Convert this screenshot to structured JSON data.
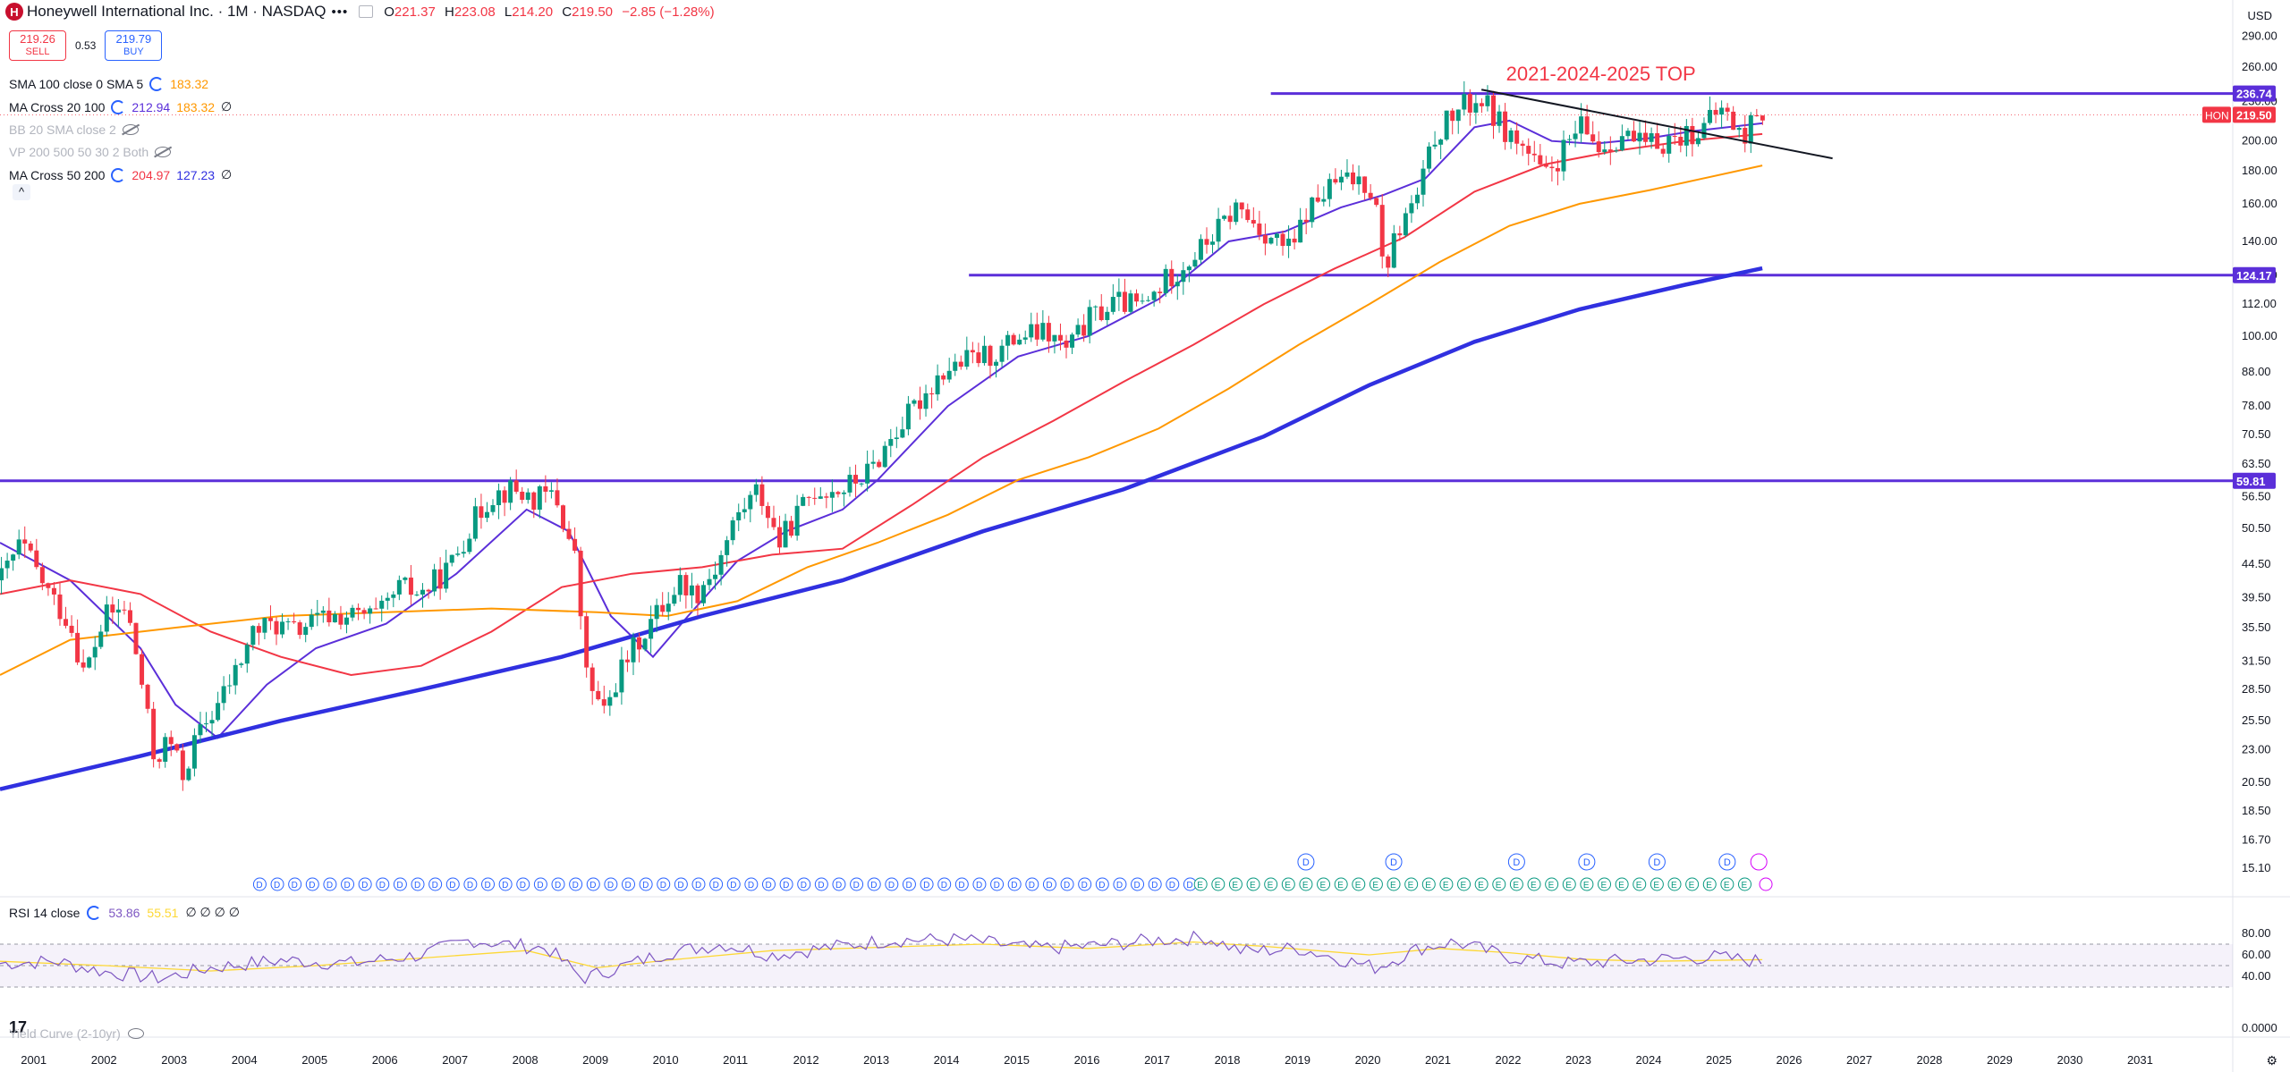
{
  "header": {
    "logo_letter": "H",
    "title": "Honeywell International Inc. · 1M · NASDAQ",
    "dots": "•••",
    "open_label": "O",
    "open": "221.37",
    "high_label": "H",
    "high": "223.08",
    "low_label": "L",
    "low": "214.20",
    "close_label": "C",
    "close": "219.50",
    "change": "−2.85 (−1.28%)",
    "currency": "USD"
  },
  "trade": {
    "sell_price": "219.26",
    "sell_label": "SELL",
    "spread": "0.53",
    "buy_price": "219.79",
    "buy_label": "BUY"
  },
  "indicators": [
    {
      "name": "SMA 100 close 0 SMA 5",
      "v1": "183.32",
      "v1color": "#ff9800",
      "v2": "",
      "v2color": "",
      "tail": "",
      "dim": false
    },
    {
      "name": "MA Cross 20 100",
      "v1": "212.94",
      "v1color": "#5b2fd9",
      "v2": "183.32",
      "v2color": "#ff9800",
      "tail": "∅",
      "dim": false
    },
    {
      "name": "BB 20 SMA close 2",
      "v1": "",
      "v1color": "",
      "v2": "",
      "v2color": "",
      "tail": "",
      "dim": true
    },
    {
      "name": "VP 200 500 50 30 2 Both",
      "v1": "",
      "v1color": "",
      "v2": "",
      "v2color": "",
      "tail": "",
      "dim": true
    },
    {
      "name": "MA Cross 50 200",
      "v1": "204.97",
      "v1color": "#f23645",
      "v2": "127.23",
      "v2color": "#3030e0",
      "tail": "∅",
      "dim": false
    }
  ],
  "rsi": {
    "name": "RSI 14 close",
    "v1": "53.86",
    "v2": "55.51",
    "tail": "∅ ∅ ∅ ∅",
    "axis": [
      "80.00",
      "60.00",
      "40.00",
      "0.0000"
    ]
  },
  "yield_curve": {
    "name": "Yield Curve (2-10yr)"
  },
  "chart_data": {
    "type": "candlestick",
    "symbol": "HON",
    "interval": "1M",
    "y_scale": "log",
    "ylim": [
      14.0,
      300.0
    ],
    "y_ticks": [
      "290.00",
      "260.00",
      "236.74",
      "219.50",
      "200.00",
      "180.00",
      "160.00",
      "140.00",
      "124.17",
      "112.00",
      "100.00",
      "88.00",
      "78.00",
      "70.50",
      "63.50",
      "59.81",
      "56.50",
      "50.50",
      "44.50",
      "39.50",
      "35.50",
      "31.50",
      "28.50",
      "25.50",
      "23.00",
      "20.50",
      "18.50",
      "16.70",
      "15.10"
    ],
    "grid_labels": [
      290,
      260,
      230,
      200,
      180,
      160,
      140,
      124,
      112,
      100,
      88,
      78,
      70.5,
      63.5,
      56.5,
      50.5,
      44.5,
      39.5,
      35.5,
      31.5,
      28.5,
      25.5,
      23,
      20.5,
      18.5,
      16.7,
      15.1
    ],
    "x_ticks": [
      "2001",
      "2002",
      "2003",
      "2004",
      "2005",
      "2006",
      "2007",
      "2008",
      "2009",
      "2010",
      "2011",
      "2012",
      "2013",
      "2014",
      "2015",
      "2016",
      "2017",
      "2018",
      "2019",
      "2020",
      "2021",
      "2022",
      "2023",
      "2024",
      "2025",
      "2026",
      "2027",
      "2028",
      "2029",
      "2030",
      "2031"
    ],
    "xlim": [
      2000.5,
      2032.3
    ],
    "annotation": "2021-2024-2025 TOP",
    "levels": [
      {
        "value": 236.74,
        "label": "236.74",
        "from": 2018.6
      },
      {
        "value": 124.17,
        "label": "124.17",
        "from": 2014.3
      },
      {
        "value": 59.81,
        "label": "59.81",
        "from": 2000.5
      }
    ],
    "last_price": {
      "symbol": "HON",
      "value": "219.50"
    },
    "trendline": {
      "x": [
        2021.6,
        2026.6
      ],
      "y": [
        240,
        188
      ]
    },
    "price_path": [
      [
        2000.5,
        42
      ],
      [
        2000.8,
        48
      ],
      [
        2001.2,
        40
      ],
      [
        2001.5,
        36
      ],
      [
        2001.7,
        30
      ],
      [
        2002.0,
        37
      ],
      [
        2002.3,
        38
      ],
      [
        2002.5,
        30
      ],
      [
        2002.7,
        22
      ],
      [
        2002.9,
        24
      ],
      [
        2003.1,
        21
      ],
      [
        2003.3,
        24
      ],
      [
        2003.6,
        27
      ],
      [
        2003.9,
        31
      ],
      [
        2004.1,
        35
      ],
      [
        2004.4,
        36
      ],
      [
        2004.7,
        35
      ],
      [
        2004.9,
        36
      ],
      [
        2005.2,
        37
      ],
      [
        2005.6,
        37
      ],
      [
        2005.9,
        37
      ],
      [
        2006.2,
        41
      ],
      [
        2006.5,
        40
      ],
      [
        2006.9,
        44
      ],
      [
        2007.2,
        51
      ],
      [
        2007.5,
        57
      ],
      [
        2007.8,
        58
      ],
      [
        2008.1,
        56
      ],
      [
        2008.4,
        57
      ],
      [
        2008.7,
        45
      ],
      [
        2008.85,
        30
      ],
      [
        2009.1,
        26
      ],
      [
        2009.3,
        30
      ],
      [
        2009.6,
        34
      ],
      [
        2009.9,
        38
      ],
      [
        2010.2,
        42
      ],
      [
        2010.4,
        40
      ],
      [
        2010.7,
        44
      ],
      [
        2011.0,
        53
      ],
      [
        2011.3,
        58
      ],
      [
        2011.6,
        48
      ],
      [
        2011.8,
        52
      ],
      [
        2012.1,
        58
      ],
      [
        2012.5,
        58
      ],
      [
        2012.9,
        62
      ],
      [
        2013.2,
        70
      ],
      [
        2013.5,
        77
      ],
      [
        2013.9,
        88
      ],
      [
        2014.3,
        92
      ],
      [
        2014.7,
        94
      ],
      [
        2015.0,
        100
      ],
      [
        2015.4,
        101
      ],
      [
        2015.7,
        95
      ],
      [
        2016.0,
        106
      ],
      [
        2016.4,
        113
      ],
      [
        2016.8,
        111
      ],
      [
        2017.1,
        122
      ],
      [
        2017.5,
        133
      ],
      [
        2017.9,
        148
      ],
      [
        2018.1,
        158
      ],
      [
        2018.5,
        145
      ],
      [
        2018.9,
        135
      ],
      [
        2019.1,
        155
      ],
      [
        2019.5,
        172
      ],
      [
        2019.9,
        175
      ],
      [
        2020.1,
        165
      ],
      [
        2020.2,
        125
      ],
      [
        2020.4,
        145
      ],
      [
        2020.7,
        165
      ],
      [
        2020.95,
        205
      ],
      [
        2021.3,
        225
      ],
      [
        2021.6,
        232
      ],
      [
        2021.9,
        210
      ],
      [
        2022.2,
        195
      ],
      [
        2022.5,
        175
      ],
      [
        2022.8,
        195
      ],
      [
        2023.0,
        210
      ],
      [
        2023.3,
        195
      ],
      [
        2023.6,
        205
      ],
      [
        2023.9,
        196
      ],
      [
        2024.2,
        200
      ],
      [
        2024.5,
        205
      ],
      [
        2024.8,
        210
      ],
      [
        2025.0,
        225
      ],
      [
        2025.2,
        212
      ],
      [
        2025.35,
        200
      ],
      [
        2025.5,
        225
      ],
      [
        2025.6,
        219.5
      ]
    ],
    "series": [
      {
        "name": "MA Cross 20",
        "color": "#5b2fd9",
        "values": [
          [
            2000.5,
            48
          ],
          [
            2001.5,
            42
          ],
          [
            2002.5,
            33
          ],
          [
            2003.0,
            27
          ],
          [
            2003.6,
            24
          ],
          [
            2004.3,
            29
          ],
          [
            2005.0,
            33
          ],
          [
            2006.0,
            36
          ],
          [
            2007.0,
            43
          ],
          [
            2008.0,
            54
          ],
          [
            2008.6,
            50
          ],
          [
            2009.2,
            37
          ],
          [
            2009.8,
            32
          ],
          [
            2010.3,
            37
          ],
          [
            2011.0,
            45
          ],
          [
            2011.7,
            50
          ],
          [
            2012.5,
            54
          ],
          [
            2013.0,
            60
          ],
          [
            2014.0,
            78
          ],
          [
            2015.0,
            93
          ],
          [
            2016.0,
            100
          ],
          [
            2017.0,
            114
          ],
          [
            2018.0,
            140
          ],
          [
            2018.8,
            145
          ],
          [
            2019.6,
            158
          ],
          [
            2020.2,
            165
          ],
          [
            2020.8,
            175
          ],
          [
            2021.5,
            210
          ],
          [
            2022.0,
            215
          ],
          [
            2022.6,
            200
          ],
          [
            2023.2,
            198
          ],
          [
            2024.0,
            202
          ],
          [
            2024.6,
            207
          ],
          [
            2025.6,
            212.94
          ]
        ]
      },
      {
        "name": "MA Cross 50",
        "color": "#f23645",
        "values": [
          [
            2000.5,
            40
          ],
          [
            2001.5,
            42
          ],
          [
            2002.5,
            40
          ],
          [
            2003.5,
            35
          ],
          [
            2004.5,
            32
          ],
          [
            2005.5,
            30
          ],
          [
            2006.5,
            31
          ],
          [
            2007.5,
            35
          ],
          [
            2008.5,
            41
          ],
          [
            2009.5,
            43
          ],
          [
            2010.5,
            44
          ],
          [
            2011.5,
            46
          ],
          [
            2012.5,
            47
          ],
          [
            2013.5,
            55
          ],
          [
            2014.5,
            65
          ],
          [
            2015.5,
            74
          ],
          [
            2016.5,
            85
          ],
          [
            2017.5,
            97
          ],
          [
            2018.5,
            112
          ],
          [
            2019.5,
            127
          ],
          [
            2020.5,
            142
          ],
          [
            2021.5,
            167
          ],
          [
            2022.5,
            184
          ],
          [
            2023.5,
            193
          ],
          [
            2024.5,
            200
          ],
          [
            2025.6,
            204.97
          ]
        ]
      },
      {
        "name": "SMA 100",
        "color": "#ff9800",
        "values": [
          [
            2000.5,
            30
          ],
          [
            2001.5,
            34
          ],
          [
            2003.0,
            35.5
          ],
          [
            2004.5,
            37
          ],
          [
            2006.0,
            37.5
          ],
          [
            2007.5,
            38
          ],
          [
            2009.0,
            37.5
          ],
          [
            2010.0,
            37
          ],
          [
            2011.0,
            39
          ],
          [
            2012.0,
            44
          ],
          [
            2013.0,
            48
          ],
          [
            2014.0,
            53
          ],
          [
            2015.0,
            60
          ],
          [
            2016.0,
            65
          ],
          [
            2017.0,
            72
          ],
          [
            2018.0,
            83
          ],
          [
            2019.0,
            97
          ],
          [
            2020.0,
            112
          ],
          [
            2021.0,
            130
          ],
          [
            2022.0,
            148
          ],
          [
            2023.0,
            160
          ],
          [
            2024.0,
            168
          ],
          [
            2025.6,
            183.32
          ]
        ]
      },
      {
        "name": "MA Cross 200",
        "color": "#3030e0",
        "values": [
          [
            2000.5,
            20
          ],
          [
            2002.5,
            22.5
          ],
          [
            2004.5,
            25.5
          ],
          [
            2006.5,
            28.5
          ],
          [
            2008.5,
            32
          ],
          [
            2010.5,
            37
          ],
          [
            2012.5,
            42
          ],
          [
            2014.5,
            50
          ],
          [
            2016.5,
            58
          ],
          [
            2018.5,
            70
          ],
          [
            2020.0,
            84
          ],
          [
            2021.5,
            98
          ],
          [
            2023.0,
            110
          ],
          [
            2024.5,
            120
          ],
          [
            2025.6,
            127.23
          ]
        ]
      }
    ],
    "rsi_series": {
      "ylim": [
        0,
        100
      ],
      "rsi": [
        [
          2000.5,
          52
        ],
        [
          2001.3,
          54
        ],
        [
          2002.0,
          44
        ],
        [
          2002.8,
          38
        ],
        [
          2003.5,
          48
        ],
        [
          2004.5,
          55
        ],
        [
          2005.5,
          52
        ],
        [
          2006.5,
          60
        ],
        [
          2007.2,
          74
        ],
        [
          2007.7,
          70
        ],
        [
          2008.3,
          66
        ],
        [
          2008.8,
          38
        ],
        [
          2009.3,
          48
        ],
        [
          2010.0,
          62
        ],
        [
          2010.8,
          70
        ],
        [
          2011.5,
          60
        ],
        [
          2012.2,
          66
        ],
        [
          2013.2,
          74
        ],
        [
          2014.2,
          74
        ],
        [
          2015.2,
          66
        ],
        [
          2016.0,
          68
        ],
        [
          2017.0,
          74
        ],
        [
          2017.7,
          76
        ],
        [
          2018.2,
          63
        ],
        [
          2019.0,
          66
        ],
        [
          2020.1,
          48
        ],
        [
          2020.7,
          66
        ],
        [
          2021.2,
          72
        ],
        [
          2022.0,
          58
        ],
        [
          2022.8,
          52
        ],
        [
          2023.5,
          54
        ],
        [
          2024.2,
          56
        ],
        [
          2024.9,
          58
        ],
        [
          2025.6,
          53.86
        ]
      ],
      "ma": [
        [
          2000.5,
          54
        ],
        [
          2002.0,
          50
        ],
        [
          2003.5,
          45
        ],
        [
          2005.0,
          50
        ],
        [
          2006.5,
          57
        ],
        [
          2008.0,
          64
        ],
        [
          2009.0,
          48
        ],
        [
          2010.0,
          55
        ],
        [
          2011.5,
          64
        ],
        [
          2013.0,
          67
        ],
        [
          2014.5,
          70
        ],
        [
          2016.0,
          66
        ],
        [
          2017.5,
          72
        ],
        [
          2018.5,
          68
        ],
        [
          2020.0,
          60
        ],
        [
          2021.0,
          66
        ],
        [
          2022.0,
          62
        ],
        [
          2023.0,
          56
        ],
        [
          2024.0,
          54
        ],
        [
          2025.6,
          55.51
        ]
      ]
    },
    "dividend_markers": "D",
    "earnings_markers": "E"
  }
}
